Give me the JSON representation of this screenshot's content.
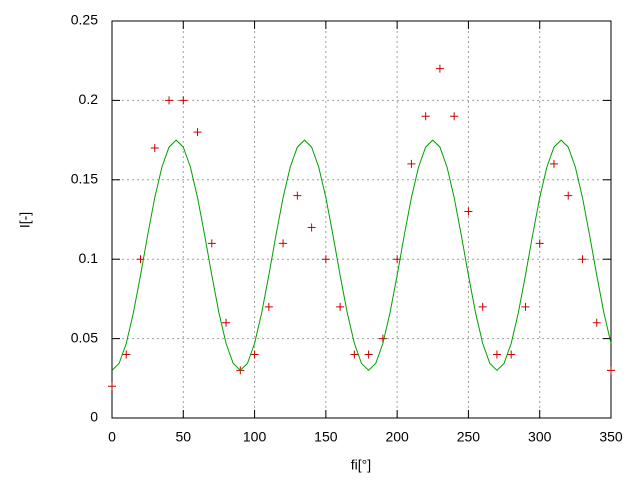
{
  "chart_data": {
    "type": "scatter",
    "xlabel": "fi[°]",
    "ylabel": "I[-]",
    "xlim": [
      0,
      350
    ],
    "xticks": [
      0,
      50,
      100,
      150,
      200,
      250,
      300,
      350
    ],
    "ylim": [
      0,
      0.25
    ],
    "yticks": [
      0,
      0.05,
      0.1,
      0.15,
      0.2,
      0.25
    ],
    "grid": true,
    "series": [
      {
        "style": "points",
        "color": "#cc0000",
        "x": [
          0,
          10,
          20,
          30,
          40,
          50,
          60,
          70,
          80,
          90,
          100,
          110,
          120,
          130,
          140,
          150,
          160,
          170,
          180,
          190,
          200,
          210,
          220,
          230,
          240,
          250,
          260,
          270,
          280,
          290,
          300,
          310,
          320,
          330,
          340,
          350
        ],
        "values": [
          0.02,
          0.04,
          0.1,
          0.17,
          0.2,
          0.2,
          0.18,
          0.11,
          0.06,
          0.03,
          0.04,
          0.07,
          0.11,
          0.14,
          0.12,
          0.1,
          0.07,
          0.04,
          0.04,
          0.05,
          0.1,
          0.16,
          0.19,
          0.22,
          0.19,
          0.13,
          0.07,
          0.04,
          0.04,
          0.07,
          0.11,
          0.16,
          0.14,
          0.1,
          0.06,
          0.03
        ]
      },
      {
        "style": "line",
        "color": "#00a000",
        "x": [
          0,
          5,
          10,
          15,
          20,
          25,
          30,
          35,
          40,
          45,
          50,
          55,
          60,
          65,
          70,
          75,
          80,
          85,
          90,
          95,
          100,
          105,
          110,
          115,
          120,
          125,
          130,
          135,
          140,
          145,
          150,
          155,
          160,
          165,
          170,
          175,
          180,
          185,
          190,
          195,
          200,
          205,
          210,
          215,
          220,
          225,
          230,
          235,
          240,
          245,
          250,
          255,
          260,
          265,
          270,
          275,
          280,
          285,
          290,
          295,
          300,
          305,
          310,
          315,
          320,
          325,
          330,
          335,
          340,
          345,
          350
        ],
        "values": [
          0.03,
          0.0344,
          0.047,
          0.0663,
          0.0899,
          0.1151,
          0.1388,
          0.158,
          0.1706,
          0.175,
          0.1706,
          0.158,
          0.1388,
          0.1151,
          0.0899,
          0.0663,
          0.047,
          0.0344,
          0.03,
          0.0344,
          0.047,
          0.0663,
          0.0899,
          0.1151,
          0.1388,
          0.158,
          0.1706,
          0.175,
          0.1706,
          0.158,
          0.1388,
          0.1151,
          0.0899,
          0.0663,
          0.047,
          0.0344,
          0.03,
          0.0344,
          0.047,
          0.0663,
          0.0899,
          0.1151,
          0.1388,
          0.158,
          0.1706,
          0.175,
          0.1706,
          0.158,
          0.1388,
          0.1151,
          0.0899,
          0.0663,
          0.047,
          0.0344,
          0.03,
          0.0344,
          0.047,
          0.0663,
          0.0899,
          0.1151,
          0.1388,
          0.158,
          0.1706,
          0.175,
          0.1706,
          0.158,
          0.1388,
          0.1151,
          0.0899,
          0.0663,
          0.047
        ]
      }
    ]
  }
}
